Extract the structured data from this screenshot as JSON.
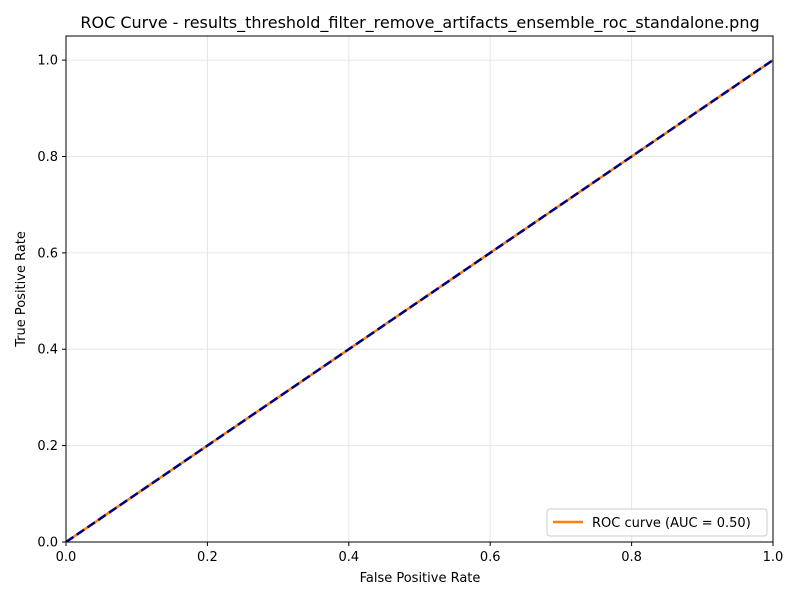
{
  "chart_data": {
    "type": "line",
    "title": "ROC Curve - results_threshold_filter_remove_artifacts_ensemble_roc_standalone.png",
    "xlabel": "False Positive Rate",
    "ylabel": "True Positive Rate",
    "xlim": [
      0.0,
      1.0
    ],
    "ylim": [
      0.0,
      1.05
    ],
    "x_ticks": [
      "0.0",
      "0.2",
      "0.4",
      "0.6",
      "0.8",
      "1.0"
    ],
    "y_ticks": [
      "0.0",
      "0.2",
      "0.4",
      "0.6",
      "0.8",
      "1.0"
    ],
    "grid": true,
    "legend_position": "lower-right",
    "series": [
      {
        "name": "ROC curve (AUC = 0.50)",
        "color": "#ff7f0e",
        "style": "solid",
        "x": [
          0.0,
          0.0,
          1.0
        ],
        "y": [
          0.0,
          0.0,
          1.0
        ]
      },
      {
        "color": "#000080",
        "style": "dashed",
        "x": [
          0.0,
          1.0
        ],
        "y": [
          0.0,
          1.0
        ]
      }
    ]
  }
}
